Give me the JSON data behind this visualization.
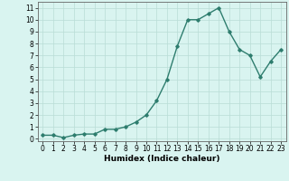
{
  "x": [
    0,
    1,
    2,
    3,
    4,
    5,
    6,
    7,
    8,
    9,
    10,
    11,
    12,
    13,
    14,
    15,
    16,
    17,
    18,
    19,
    20,
    21,
    22,
    23
  ],
  "y": [
    0.3,
    0.3,
    0.1,
    0.3,
    0.4,
    0.4,
    0.8,
    0.8,
    1.0,
    1.4,
    2.0,
    3.2,
    5.0,
    7.8,
    10.0,
    10.0,
    10.5,
    11.0,
    9.0,
    7.5,
    7.0,
    5.2,
    6.5,
    7.5
  ],
  "xlabel": "Humidex (Indice chaleur)",
  "ylim": [
    -0.2,
    11.5
  ],
  "xlim": [
    -0.5,
    23.5
  ],
  "yticks": [
    0,
    1,
    2,
    3,
    4,
    5,
    6,
    7,
    8,
    9,
    10,
    11
  ],
  "xticks": [
    0,
    1,
    2,
    3,
    4,
    5,
    6,
    7,
    8,
    9,
    10,
    11,
    12,
    13,
    14,
    15,
    16,
    17,
    18,
    19,
    20,
    21,
    22,
    23
  ],
  "line_color": "#2e7d6e",
  "marker": "D",
  "marker_size": 1.8,
  "bg_color": "#d9f4f0",
  "grid_color": "#b8dcd6",
  "line_width": 1.0,
  "xlabel_fontsize": 6.5,
  "tick_fontsize": 5.5
}
